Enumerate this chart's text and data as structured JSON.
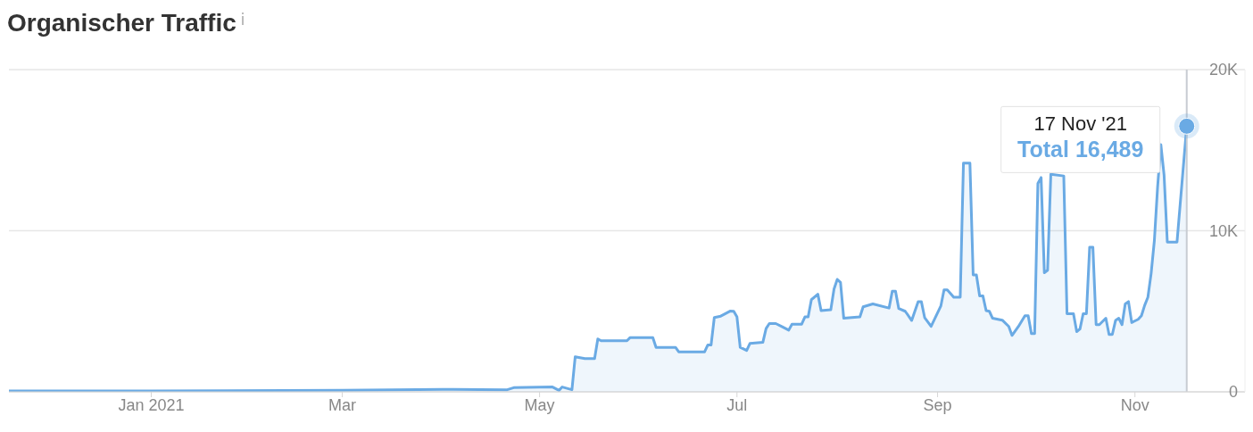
{
  "chart_data": {
    "type": "area",
    "title": "Organischer Traffic",
    "x": [
      "2020-11-18",
      "2021-01-01",
      "2021-03-01",
      "2021-04-01",
      "2021-04-21",
      "2021-04-23",
      "2021-05-05",
      "2021-05-07",
      "2021-05-08",
      "2021-05-11",
      "2021-05-12",
      "2021-05-15",
      "2021-05-18",
      "2021-05-19",
      "2021-05-20",
      "2021-05-28",
      "2021-05-29",
      "2021-06-05",
      "2021-06-06",
      "2021-06-12",
      "2021-06-13",
      "2021-06-21",
      "2021-06-22",
      "2021-06-23",
      "2021-06-24",
      "2021-06-26",
      "2021-06-29",
      "2021-06-30",
      "2021-07-01",
      "2021-07-02",
      "2021-07-04",
      "2021-07-05",
      "2021-07-09",
      "2021-07-10",
      "2021-07-11",
      "2021-07-13",
      "2021-07-15",
      "2021-07-17",
      "2021-07-18",
      "2021-07-21",
      "2021-07-22",
      "2021-07-23",
      "2021-07-24",
      "2021-07-26",
      "2021-07-27",
      "2021-07-30",
      "2021-07-31",
      "2021-08-01",
      "2021-08-02",
      "2021-08-03",
      "2021-08-08",
      "2021-08-09",
      "2021-08-12",
      "2021-08-17",
      "2021-08-18",
      "2021-08-19",
      "2021-08-20",
      "2021-08-22",
      "2021-08-24",
      "2021-08-26",
      "2021-08-27",
      "2021-08-28",
      "2021-08-30",
      "2021-09-02",
      "2021-09-03",
      "2021-09-04",
      "2021-09-06",
      "2021-09-08",
      "2021-09-09",
      "2021-09-11",
      "2021-09-12",
      "2021-09-13",
      "2021-09-14",
      "2021-09-15",
      "2021-09-16",
      "2021-09-17",
      "2021-09-18",
      "2021-09-21",
      "2021-09-23",
      "2021-09-24",
      "2021-09-26",
      "2021-09-28",
      "2021-09-29",
      "2021-09-30",
      "2021-10-01",
      "2021-10-02",
      "2021-10-03",
      "2021-10-04",
      "2021-10-05",
      "2021-10-06",
      "2021-10-10",
      "2021-10-11",
      "2021-10-13",
      "2021-10-14",
      "2021-10-15",
      "2021-10-16",
      "2021-10-17",
      "2021-10-18",
      "2021-10-19",
      "2021-10-20",
      "2021-10-21",
      "2021-10-23",
      "2021-10-24",
      "2021-10-25",
      "2021-10-26",
      "2021-10-27",
      "2021-10-28",
      "2021-10-29",
      "2021-10-30",
      "2021-10-31",
      "2021-11-02",
      "2021-11-03",
      "2021-11-04",
      "2021-11-05",
      "2021-11-06",
      "2021-11-07",
      "2021-11-08",
      "2021-11-09",
      "2021-11-10",
      "2021-11-11",
      "2021-11-14",
      "2021-11-17"
    ],
    "series": [
      {
        "color": "#6aaae4",
        "values": [
          50,
          60,
          100,
          150,
          130,
          260,
          300,
          90,
          300,
          130,
          2170,
          2060,
          2060,
          3280,
          3170,
          3170,
          3370,
          3370,
          2760,
          2760,
          2480,
          2480,
          2910,
          2910,
          4610,
          4700,
          5020,
          5000,
          4650,
          2760,
          2570,
          3000,
          3070,
          3930,
          4240,
          4240,
          4040,
          3830,
          4200,
          4200,
          4650,
          4650,
          5720,
          6060,
          5040,
          5100,
          6390,
          6980,
          6800,
          4570,
          4650,
          5280,
          5460,
          5200,
          6240,
          6240,
          5170,
          5000,
          4430,
          5590,
          5590,
          4610,
          4060,
          5320,
          6330,
          6330,
          5870,
          5870,
          14200,
          14200,
          7260,
          7260,
          5960,
          5960,
          5040,
          5000,
          4570,
          4450,
          4060,
          3500,
          4060,
          4720,
          4720,
          3610,
          3610,
          12940,
          13300,
          7390,
          7550,
          13500,
          13400,
          4850,
          4850,
          3740,
          3900,
          4850,
          4850,
          8980,
          8980,
          4170,
          4170,
          4570,
          3560,
          3560,
          4430,
          4570,
          4170,
          5460,
          5600,
          4300,
          4500,
          4720,
          5370,
          5870,
          7350,
          9390,
          12720,
          15350,
          13460,
          9300,
          9300,
          16489
        ]
      }
    ],
    "xlim": [
      "2020-11-18",
      "2021-12-05"
    ],
    "xticks": [
      {
        "value": "2021-01-01",
        "label": "Jan 2021"
      },
      {
        "value": "2021-03-01",
        "label": "Mar"
      },
      {
        "value": "2021-05-01",
        "label": "May"
      },
      {
        "value": "2021-07-01",
        "label": "Jul"
      },
      {
        "value": "2021-09-01",
        "label": "Sep"
      },
      {
        "value": "2021-11-01",
        "label": "Nov"
      }
    ],
    "ylim": [
      0,
      20000
    ],
    "yticks": [
      0,
      {
        "value": 10000,
        "label": "10K"
      },
      {
        "value": 20000,
        "label": "20K"
      }
    ],
    "grid": "y",
    "marker": "none",
    "line_style": "solid",
    "ref_lines": [
      {
        "axis": "x",
        "value": "2021-11-17",
        "color": "#c8ccd2"
      }
    ],
    "annotations": [
      "17 Nov '21",
      "Total 16,489"
    ]
  }
}
